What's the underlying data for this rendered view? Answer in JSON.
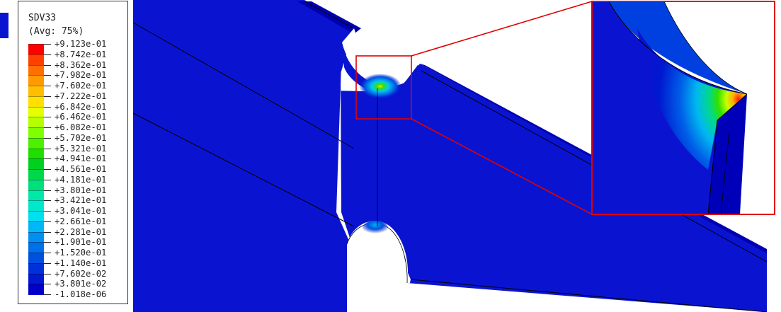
{
  "legend": {
    "variable": "SDV33",
    "averaging": "(Avg: 75%)",
    "values": [
      "+9.123e-01",
      "+8.742e-01",
      "+8.362e-01",
      "+7.982e-01",
      "+7.602e-01",
      "+7.222e-01",
      "+6.842e-01",
      "+6.462e-01",
      "+6.082e-01",
      "+5.702e-01",
      "+5.321e-01",
      "+4.941e-01",
      "+4.561e-01",
      "+4.181e-01",
      "+3.801e-01",
      "+3.421e-01",
      "+3.041e-01",
      "+2.661e-01",
      "+2.281e-01",
      "+1.901e-01",
      "+1.520e-01",
      "+1.140e-01",
      "+7.602e-02",
      "+3.801e-02",
      "-1.018e-06"
    ],
    "colors": [
      "#ff0000",
      "#ff4000",
      "#ff7000",
      "#ff9a00",
      "#ffbe00",
      "#ffe000",
      "#e4ff00",
      "#b4ff00",
      "#80ff00",
      "#4cf000",
      "#1ee000",
      "#00d020",
      "#00d84c",
      "#00e07a",
      "#00e8a8",
      "#00e8cc",
      "#00e0f0",
      "#00b8f8",
      "#0090f0",
      "#0070e8",
      "#0050e0",
      "#0030d8",
      "#0018d0",
      "#0000c8"
    ]
  },
  "colors": {
    "model_face": "#0a14d0",
    "model_side": "#0000a8",
    "model_edge": "#000000",
    "zoom_frame": "#e00000",
    "hot_spot": "#ff2000"
  }
}
